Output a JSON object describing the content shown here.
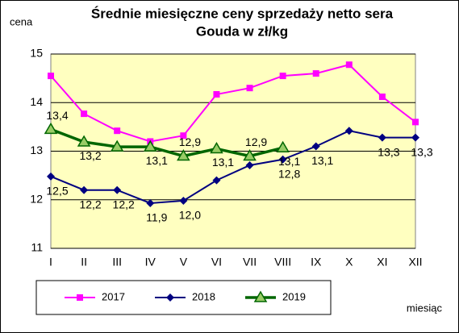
{
  "chart_data": {
    "type": "line",
    "title": [
      "Średnie miesięczne ceny sprzedaży netto sera",
      "Gouda w zł/kg"
    ],
    "y_label": "cena",
    "x_label": "miesiąc",
    "categories": [
      "I",
      "II",
      "III",
      "IV",
      "V",
      "VI",
      "VII",
      "VIII",
      "IX",
      "X",
      "XI",
      "XII"
    ],
    "ylim": [
      11,
      15
    ],
    "yticks": [
      11,
      12,
      13,
      14,
      15
    ],
    "grid": true,
    "series": [
      {
        "name": "2017",
        "color": "#ff00ff",
        "marker": "square",
        "values": [
          14.55,
          13.77,
          13.42,
          13.2,
          13.32,
          14.17,
          14.3,
          14.55,
          14.6,
          14.78,
          14.12,
          13.6
        ]
      },
      {
        "name": "2018",
        "color": "#000080",
        "marker": "diamond",
        "values": [
          12.48,
          12.2,
          12.2,
          11.93,
          11.98,
          12.4,
          12.71,
          12.83,
          13.1,
          13.42,
          13.28,
          13.28
        ],
        "value_labels": [
          "12,5",
          "12,2",
          "12,2",
          "11,9",
          "12,0",
          null,
          null,
          "12,8",
          "13,1",
          null,
          "13,3",
          "13,3"
        ]
      },
      {
        "name": "2019",
        "color": "#006600",
        "marker": "triangle",
        "values": [
          13.45,
          13.19,
          13.09,
          13.09,
          12.9,
          13.05,
          12.9,
          13.07,
          null,
          null,
          null,
          null
        ],
        "value_labels": [
          "13,4",
          "13,2",
          null,
          "13,1",
          "12,9",
          "13,1",
          "12,9",
          "13,1",
          null,
          null,
          null,
          null
        ]
      }
    ]
  }
}
